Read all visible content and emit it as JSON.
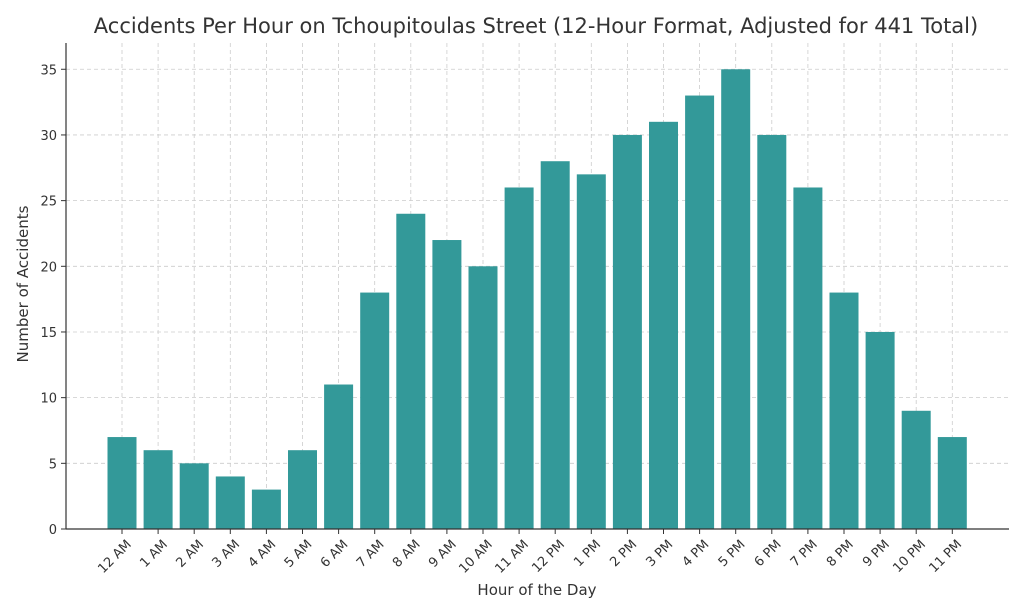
{
  "chart_data": {
    "type": "bar",
    "title": "Accidents Per Hour on Tchoupitoulas Street (12-Hour Format, Adjusted for 441 Total)",
    "xlabel": "Hour of the Day",
    "ylabel": "Number of Accidents",
    "categories": [
      "12 AM",
      "1 AM",
      "2 AM",
      "3 AM",
      "4 AM",
      "5 AM",
      "6 AM",
      "7 AM",
      "8 AM",
      "9 AM",
      "10 AM",
      "11 AM",
      "12 PM",
      "1 PM",
      "2 PM",
      "3 PM",
      "4 PM",
      "5 PM",
      "6 PM",
      "7 PM",
      "8 PM",
      "9 PM",
      "10 PM",
      "11 PM"
    ],
    "values": [
      7,
      6,
      5,
      4,
      3,
      6,
      11,
      18,
      24,
      22,
      20,
      26,
      28,
      27,
      30,
      31,
      33,
      35,
      30,
      26,
      18,
      15,
      9,
      7
    ],
    "ylim": [
      0,
      37
    ],
    "yticks": [
      0,
      5,
      10,
      15,
      20,
      25,
      30,
      35
    ],
    "grid": true,
    "bar_color": "#339999"
  }
}
